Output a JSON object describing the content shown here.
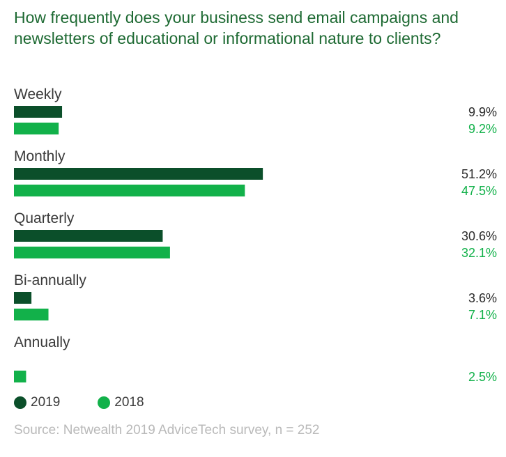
{
  "chart_data": {
    "type": "bar",
    "orientation": "horizontal",
    "title": "How frequently does your business send email campaigns and newsletters of educational or informational nature to clients?",
    "categories": [
      "Weekly",
      "Monthly",
      "Quarterly",
      "Bi-annually",
      "Annually"
    ],
    "series": [
      {
        "name": "2019",
        "color": "#0b4f2a",
        "values": [
          9.9,
          51.2,
          30.6,
          3.6,
          null
        ],
        "labels": [
          "9.9%",
          "51.2%",
          "30.6%",
          "3.6%",
          ""
        ]
      },
      {
        "name": "2018",
        "color": "#12b14a",
        "values": [
          9.2,
          47.5,
          32.1,
          7.1,
          2.5
        ],
        "labels": [
          "9.2%",
          "47.5%",
          "32.1%",
          "7.1%",
          "2.5%"
        ]
      }
    ],
    "unit": "%",
    "xlim": [
      0,
      100
    ],
    "grid": false,
    "legend_position": "bottom-left",
    "source": "Source: Netwealth 2019 AdviceTech survey, n = 252"
  }
}
